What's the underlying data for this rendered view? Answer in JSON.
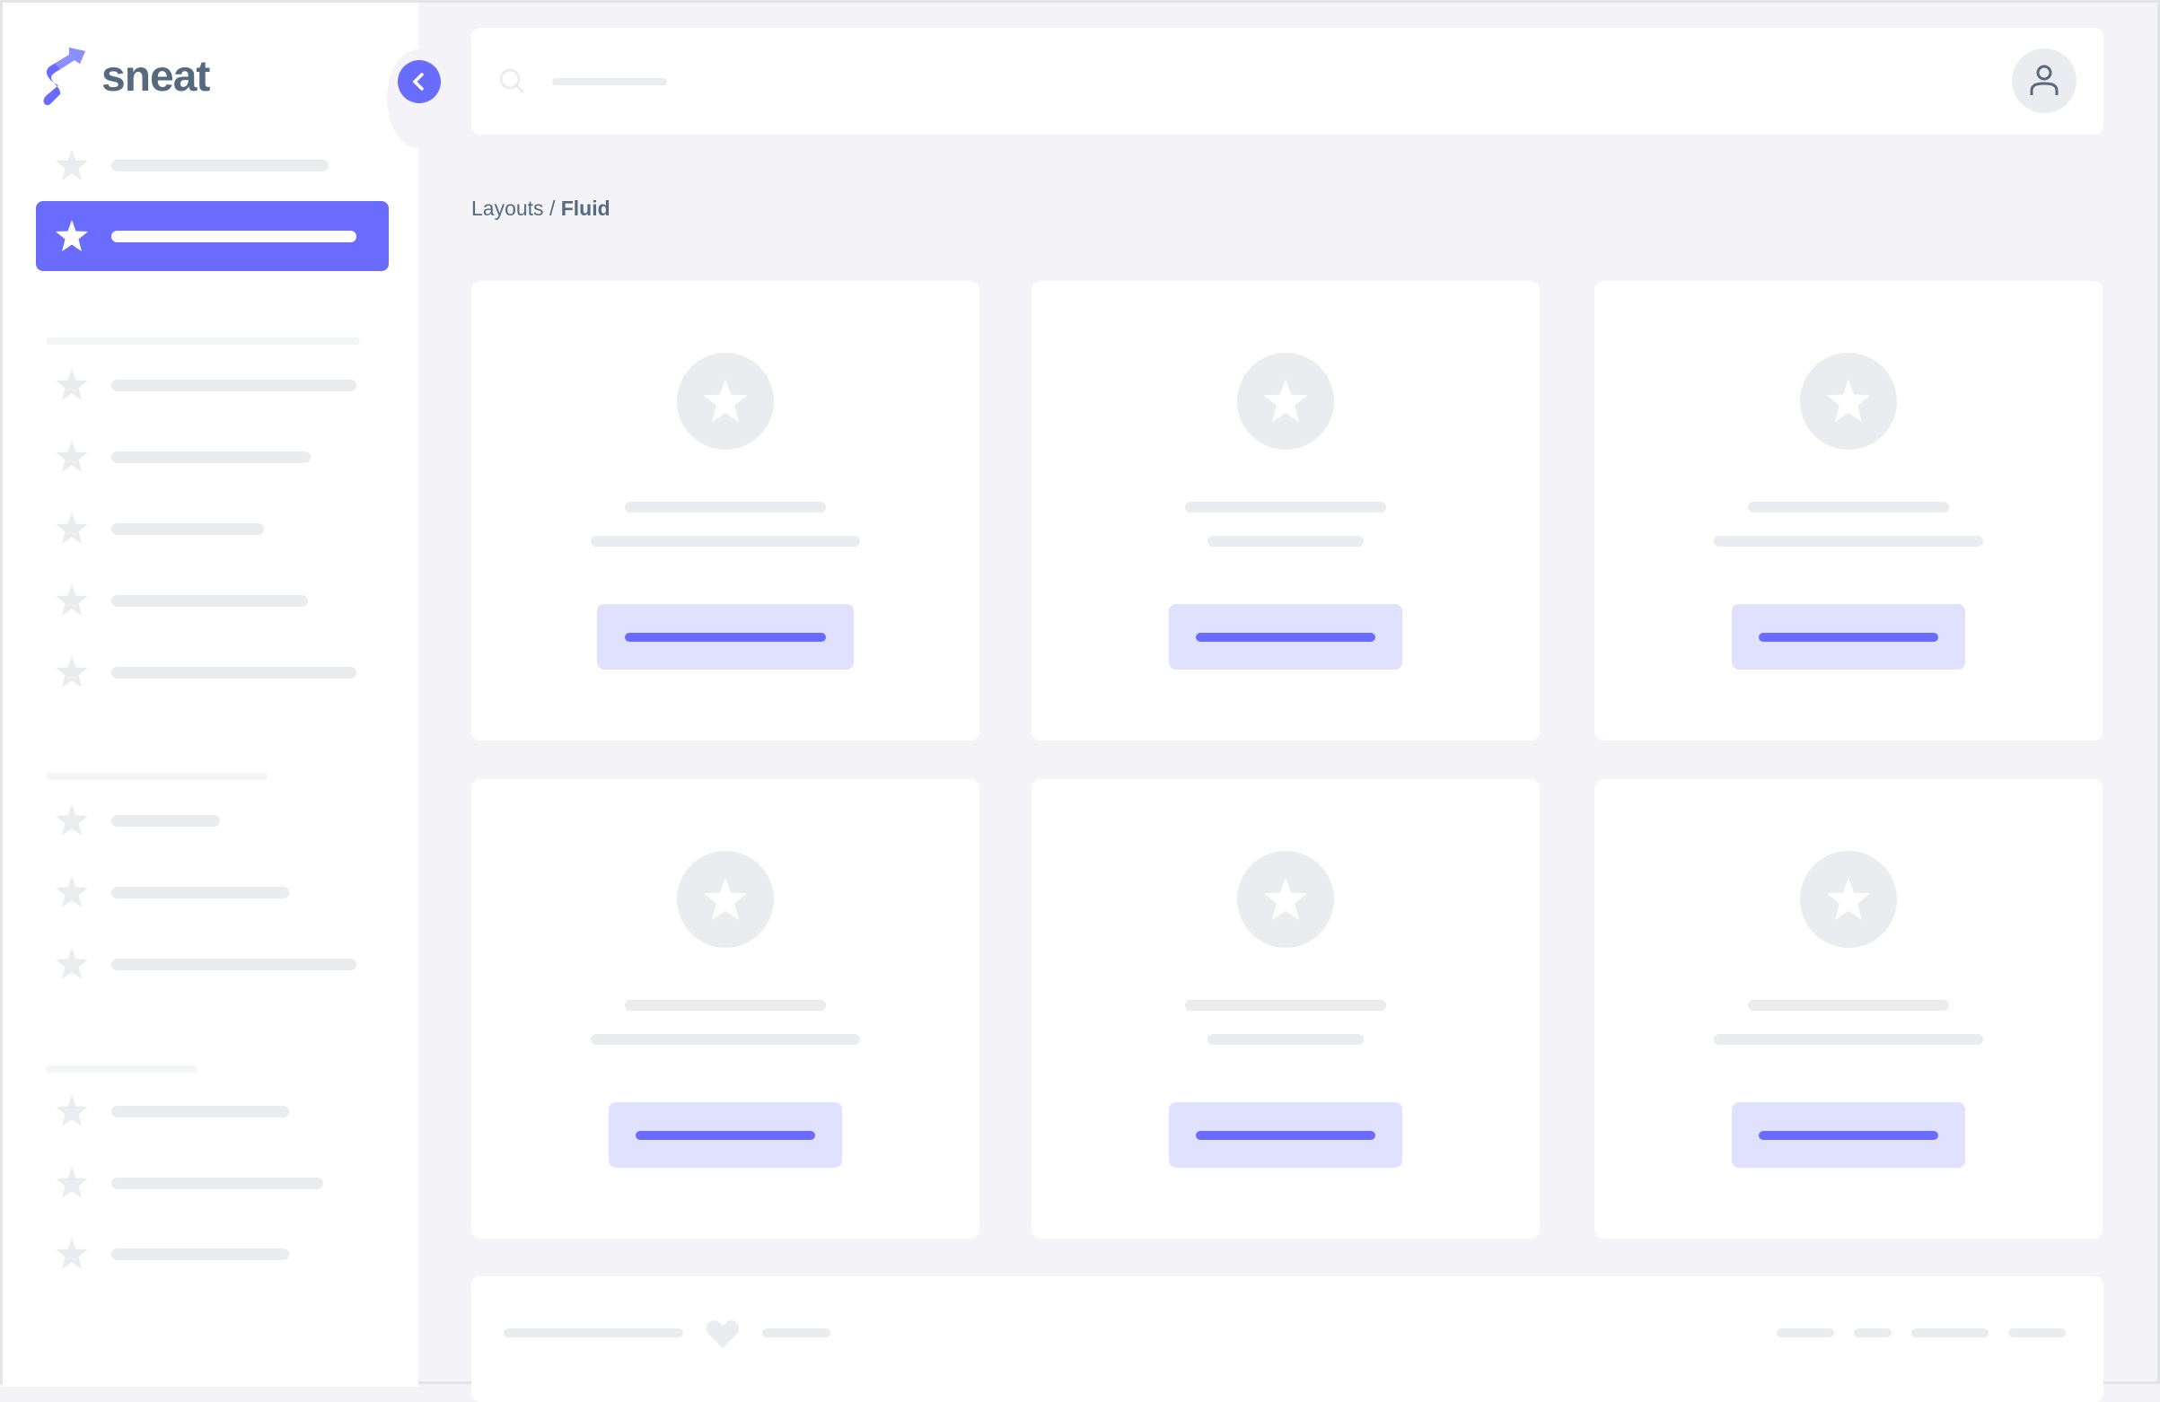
{
  "app": {
    "brand": "sneat",
    "accent_color": "#696cff"
  },
  "sidebar": {
    "items": [
      {
        "section": 0,
        "active": false,
        "icon": "star-icon"
      },
      {
        "section": 0,
        "active": true,
        "icon": "star-icon"
      },
      {
        "section": 1,
        "active": false,
        "icon": "star-icon"
      },
      {
        "section": 1,
        "active": false,
        "icon": "star-icon"
      },
      {
        "section": 1,
        "active": false,
        "icon": "star-icon"
      },
      {
        "section": 1,
        "active": false,
        "icon": "star-icon"
      },
      {
        "section": 1,
        "active": false,
        "icon": "star-icon"
      },
      {
        "section": 2,
        "active": false,
        "icon": "star-icon"
      },
      {
        "section": 2,
        "active": false,
        "icon": "star-icon"
      },
      {
        "section": 2,
        "active": false,
        "icon": "star-icon"
      },
      {
        "section": 3,
        "active": false,
        "icon": "star-icon"
      },
      {
        "section": 3,
        "active": false,
        "icon": "star-icon"
      },
      {
        "section": 3,
        "active": false,
        "icon": "star-icon"
      }
    ],
    "collapse_icon": "chevron-left-icon"
  },
  "header": {
    "search_icon": "search-icon",
    "user_icon": "user-icon"
  },
  "breadcrumb": {
    "parent": "Layouts",
    "separator": " / ",
    "current": "Fluid"
  },
  "cards": [
    {
      "icon": "star-icon"
    },
    {
      "icon": "star-icon"
    },
    {
      "icon": "star-icon"
    },
    {
      "icon": "star-icon"
    },
    {
      "icon": "star-icon"
    },
    {
      "icon": "star-icon"
    }
  ],
  "footer": {
    "icon": "heart-icon"
  }
}
